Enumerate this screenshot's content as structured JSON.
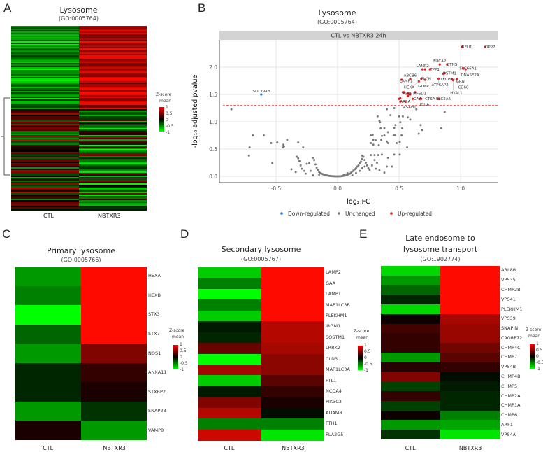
{
  "colors": {
    "up": "#e31a1c",
    "down": "#1f78d4",
    "unchanged": "#7a7a7a",
    "threshold": "#ff4d4d",
    "strip": "#d3d3d3"
  },
  "panelA": {
    "letter": "A",
    "title": "Lysosome",
    "go": "(GO:0005764)",
    "columns": [
      "CTL",
      "NBTXR3"
    ],
    "legend_title": "Z-score\nmean",
    "legend_ticks": [
      "1",
      "0.5",
      "0",
      "-0.5",
      "-1"
    ],
    "n_rows": 130
  },
  "panelB": {
    "letter": "B",
    "title": "Lysosome",
    "go": "(GO:0005764)",
    "strip": "CTL vs NBTXR3 24h"
  },
  "chart_data": [
    {
      "type": "scatter",
      "panel": "B",
      "title": "Lysosome",
      "subtitle": "(GO:0005764)",
      "facet": "CTL vs NBTXR3 24h",
      "xlabel": "log₂ FC",
      "ylabel": "-log₁₀ adjusted pvalue",
      "xlim": [
        -0.96,
        1.3
      ],
      "ylim": [
        -0.115,
        2.5
      ],
      "xticks": [
        -0.5,
        0.0,
        0.5,
        1.0
      ],
      "xtick_labels": [
        "-0.5",
        "0.0",
        "0.5",
        "1.0"
      ],
      "yticks": [
        0,
        0.5,
        1,
        1.5,
        2
      ],
      "ytick_labels": [
        "0.0",
        "0.5",
        "1.0",
        "1.5",
        "2.0"
      ],
      "grid": true,
      "threshold": 1.3,
      "legend_position": "bottom",
      "legend": [
        "Down-regulated",
        "Unchanged",
        "Up-regulated"
      ],
      "down": [
        {
          "x": -0.62,
          "y": 1.5,
          "label": "SLC39A8"
        }
      ],
      "up": [
        {
          "x": 1.01,
          "y": 2.37,
          "label": "NEU1"
        },
        {
          "x": 1.2,
          "y": 2.37,
          "label": "DPP7"
        },
        {
          "x": 0.83,
          "y": 2.05,
          "label": "FUCA2"
        },
        {
          "x": 0.89,
          "y": 2.05,
          "label": "CTNS"
        },
        {
          "x": 0.69,
          "y": 1.96,
          "label": "LAMP2"
        },
        {
          "x": 0.71,
          "y": 1.96,
          "label": ""
        },
        {
          "x": 0.75,
          "y": 1.96,
          "label": "TPP1"
        },
        {
          "x": 1.02,
          "y": 1.98,
          "label": "SLC66A1"
        },
        {
          "x": 1.04,
          "y": 1.96,
          "label": "DNASE2A"
        },
        {
          "x": 0.86,
          "y": 1.88,
          "label": "TECPR1"
        },
        {
          "x": 0.87,
          "y": 1.89,
          "label": "OSTM1"
        },
        {
          "x": 0.93,
          "y": 1.78,
          "label": "GRN"
        },
        {
          "x": 0.97,
          "y": 1.78,
          "label": "CD68"
        },
        {
          "x": 0.82,
          "y": 1.79,
          "label": "ATP6AP2"
        },
        {
          "x": 0.94,
          "y": 1.76,
          "label": "HYAL1"
        },
        {
          "x": 0.52,
          "y": 1.77,
          "label": "LAMP1"
        },
        {
          "x": 0.59,
          "y": 1.79,
          "label": "ABCB6"
        },
        {
          "x": 0.66,
          "y": 1.74,
          "label": "HEXA"
        },
        {
          "x": 0.71,
          "y": 1.77,
          "label": "GLMP"
        },
        {
          "x": 0.68,
          "y": 1.79,
          "label": "FLCN"
        },
        {
          "x": 0.53,
          "y": 1.54,
          "label": "PSAP"
        },
        {
          "x": 0.54,
          "y": 1.54,
          "label": ""
        },
        {
          "x": 0.63,
          "y": 1.54,
          "label": "MFSD1"
        },
        {
          "x": 0.57,
          "y": 1.52,
          "label": ""
        },
        {
          "x": 0.58,
          "y": 1.5,
          "label": ""
        },
        {
          "x": 0.59,
          "y": 1.5,
          "label": ""
        },
        {
          "x": 0.57,
          "y": 1.47,
          "label": ""
        },
        {
          "x": 0.61,
          "y": 1.42,
          "label": "GAA"
        },
        {
          "x": 0.68,
          "y": 1.42,
          "label": "CTSA"
        },
        {
          "x": 0.67,
          "y": 1.42,
          "label": "IDUA"
        },
        {
          "x": 0.82,
          "y": 1.42,
          "label": "SLC2A6"
        },
        {
          "x": 0.51,
          "y": 1.37,
          "label": "ARSA"
        },
        {
          "x": 0.5,
          "y": 1.42,
          "label": ""
        },
        {
          "x": 0.51,
          "y": 1.43,
          "label": ""
        },
        {
          "x": 0.55,
          "y": 1.37,
          "label": "ASAH1"
        }
      ],
      "unchanged": [
        [
          -0.863,
          1.23
        ],
        [
          -0.688,
          0.75
        ],
        [
          -0.715,
          0.53
        ],
        [
          -0.72,
          0.38
        ],
        [
          -0.6,
          0.75
        ],
        [
          -0.54,
          0.61
        ],
        [
          -0.49,
          0.62
        ],
        [
          -0.53,
          0.24
        ],
        [
          -0.41,
          0.67
        ],
        [
          -0.44,
          0.58
        ],
        [
          -0.435,
          0.55
        ],
        [
          -0.445,
          0.53
        ],
        [
          -0.32,
          0.62
        ],
        [
          -0.28,
          0.53
        ],
        [
          -0.375,
          0.13
        ],
        [
          -0.34,
          0.08
        ],
        [
          -0.33,
          0.36
        ],
        [
          -0.32,
          0.33
        ],
        [
          -0.31,
          0.28
        ],
        [
          -0.3,
          0.2
        ],
        [
          -0.29,
          0.14
        ],
        [
          -0.27,
          0.1
        ],
        [
          -0.26,
          0.05
        ],
        [
          -0.25,
          0.23
        ],
        [
          -0.23,
          0.24
        ],
        [
          -0.2,
          0.34
        ],
        [
          -0.19,
          0.3
        ],
        [
          -0.18,
          0.22
        ],
        [
          -0.17,
          0.16
        ],
        [
          -0.16,
          0.12
        ],
        [
          -0.15,
          0.08
        ],
        [
          -0.14,
          0.06
        ],
        [
          -0.13,
          0.05
        ],
        [
          -0.12,
          0.04
        ],
        [
          -0.11,
          0.03
        ],
        [
          -0.1,
          0.025
        ],
        [
          -0.09,
          0.02
        ],
        [
          -0.08,
          0.015
        ],
        [
          -0.07,
          0.01
        ],
        [
          -0.06,
          0.008
        ],
        [
          -0.05,
          0.005
        ],
        [
          -0.04,
          0.003
        ],
        [
          -0.03,
          0.002
        ],
        [
          -0.02,
          0.001
        ],
        [
          -0.01,
          0.0
        ],
        [
          0.0,
          0.0
        ],
        [
          0.01,
          0.0
        ],
        [
          0.02,
          0.002
        ],
        [
          0.03,
          0.004
        ],
        [
          0.04,
          0.006
        ],
        [
          0.05,
          0.01
        ],
        [
          0.06,
          0.015
        ],
        [
          0.07,
          0.02
        ],
        [
          0.08,
          0.03
        ],
        [
          0.09,
          0.04
        ],
        [
          0.1,
          0.05
        ],
        [
          0.11,
          0.07
        ],
        [
          0.12,
          0.09
        ],
        [
          0.13,
          0.11
        ],
        [
          0.14,
          0.13
        ],
        [
          0.15,
          0.15
        ],
        [
          0.16,
          0.18
        ],
        [
          0.17,
          0.2
        ],
        [
          0.18,
          0.24
        ],
        [
          0.19,
          0.27
        ],
        [
          0.2,
          0.32
        ],
        [
          0.2,
          0.38
        ],
        [
          0.21,
          0.36
        ],
        [
          0.22,
          0.3
        ],
        [
          0.23,
          0.25
        ],
        [
          0.24,
          0.2
        ],
        [
          0.25,
          0.15
        ],
        [
          0.26,
          0.12
        ],
        [
          0.12,
          0.02
        ],
        [
          0.15,
          0.06
        ],
        [
          0.18,
          0.1
        ],
        [
          0.2,
          0.15
        ],
        [
          0.22,
          0.18
        ],
        [
          -0.2,
          0.02
        ],
        [
          -0.15,
          0.03
        ],
        [
          -0.22,
          0.1
        ],
        [
          0.05,
          0.03
        ],
        [
          0.08,
          0.06
        ],
        [
          0.27,
          0.39
        ],
        [
          0.3,
          0.39
        ],
        [
          0.33,
          0.39
        ],
        [
          0.36,
          0.4
        ],
        [
          0.4,
          1.23
        ],
        [
          0.46,
          1.25
        ],
        [
          0.325,
          1.1
        ],
        [
          0.34,
          1.02
        ],
        [
          0.345,
          0.99
        ],
        [
          0.43,
          1.12
        ],
        [
          0.5,
          1.1
        ],
        [
          0.53,
          1.1
        ],
        [
          0.51,
          0.99
        ],
        [
          0.57,
          1.08
        ],
        [
          0.59,
          1.04
        ],
        [
          0.64,
          1.23
        ],
        [
          0.87,
          1.18
        ],
        [
          0.47,
          0.94
        ],
        [
          0.46,
          0.89
        ],
        [
          0.35,
          0.88
        ],
        [
          0.38,
          0.88
        ],
        [
          0.41,
          0.81
        ],
        [
          0.675,
          0.94
        ],
        [
          0.685,
          0.85
        ],
        [
          0.66,
          0.78
        ],
        [
          0.84,
          0.88
        ],
        [
          0.525,
          0.88
        ],
        [
          0.52,
          0.75
        ],
        [
          0.27,
          0.75
        ],
        [
          0.285,
          0.76
        ],
        [
          0.36,
          0.74
        ],
        [
          0.38,
          0.75
        ],
        [
          0.455,
          0.75
        ],
        [
          0.465,
          0.75
        ],
        [
          0.29,
          0.67
        ],
        [
          0.31,
          0.66
        ],
        [
          0.355,
          0.67
        ],
        [
          0.4,
          0.64
        ],
        [
          0.505,
          0.63
        ],
        [
          0.48,
          0.61
        ],
        [
          0.41,
          0.61
        ],
        [
          0.27,
          0.61
        ],
        [
          0.29,
          0.58
        ],
        [
          0.335,
          0.57
        ],
        [
          0.565,
          0.53
        ],
        [
          0.46,
          0.4
        ],
        [
          0.505,
          0.4
        ],
        [
          0.4,
          0.18
        ],
        [
          0.44,
          0.18
        ],
        [
          0.34,
          0.11
        ],
        [
          0.38,
          0.07
        ],
        [
          0.41,
          0.34
        ],
        [
          0.3,
          0.3
        ],
        [
          0.32,
          0.25
        ],
        [
          0.28,
          0.2
        ],
        [
          0.31,
          0.14
        ]
      ]
    },
    {
      "type": "heatmap",
      "panel": "C",
      "title": "Primary lysosome",
      "go": "(GO:0005766)",
      "columns": [
        "CTL",
        "NBTXR3"
      ],
      "rows": [
        "HEXA",
        "HEXB",
        "STX3",
        "STX7",
        "NOS1",
        "ANXA11",
        "STXBP2",
        "SNAP23",
        "VAMP8"
      ],
      "values": [
        [
          -0.6,
          1
        ],
        [
          -0.5,
          1
        ],
        [
          -1,
          1
        ],
        [
          -0.4,
          1
        ],
        [
          -0.6,
          0.5
        ],
        [
          -0.15,
          0.2
        ],
        [
          -0.15,
          0.1
        ],
        [
          -0.6,
          -0.2
        ],
        [
          0.1,
          -0.6
        ]
      ]
    },
    {
      "type": "heatmap",
      "panel": "D",
      "title": "Secondary lysosome",
      "go": "(GO:0005767)",
      "columns": [
        "CTL",
        "NBTXR3"
      ],
      "rows": [
        "LAMP2",
        "GAA",
        "LAMP1",
        "MAP1LC3B",
        "PLEKHM1",
        "IRGM1",
        "SQSTM1",
        "LRRK2",
        "CLN3",
        "MAP1LC3A",
        "FTL1",
        "NCOA4",
        "PIK3C3",
        "ADAM8",
        "FTH1",
        "PLA2G5"
      ],
      "values": [
        [
          -0.8,
          1
        ],
        [
          -0.5,
          1
        ],
        [
          -1,
          1
        ],
        [
          -0.5,
          1
        ],
        [
          -0.8,
          1
        ],
        [
          -0.1,
          0.7
        ],
        [
          -0.15,
          0.7
        ],
        [
          0.4,
          0.65
        ],
        [
          -1,
          0.55
        ],
        [
          0.65,
          0.55
        ],
        [
          -0.8,
          0.35
        ],
        [
          -0.1,
          0.2
        ],
        [
          0.5,
          0.1
        ],
        [
          0.7,
          -0.05
        ],
        [
          -0.5,
          -0.5
        ],
        [
          0.8,
          -0.9
        ]
      ]
    },
    {
      "type": "heatmap",
      "panel": "E",
      "title": "Late endosome to lysosome transport",
      "go": "(GO:1902774)",
      "columns": [
        "CTL",
        "NBTXR3"
      ],
      "rows": [
        "ARL8B",
        "VPS35",
        "CHMP2B",
        "VPS41",
        "PLEKHM1",
        "VPS39",
        "SNAPIN",
        "C9ORF72",
        "CHMP4C",
        "CHMP7",
        "VPS4B",
        "CHMP4B",
        "CHMP5",
        "CHMP2A",
        "CHMP1A",
        "CHMP6",
        "ARF1",
        "VPS4A"
      ],
      "values": [
        [
          -0.85,
          1
        ],
        [
          -0.6,
          1
        ],
        [
          -0.4,
          1
        ],
        [
          -0.15,
          1
        ],
        [
          -0.85,
          1
        ],
        [
          0.05,
          0.65
        ],
        [
          0.25,
          0.6
        ],
        [
          0.2,
          0.6
        ],
        [
          0.2,
          0.45
        ],
        [
          -0.6,
          0.35
        ],
        [
          0.15,
          0.2
        ],
        [
          0.5,
          -0.05
        ],
        [
          -0.25,
          -0.1
        ],
        [
          0.2,
          -0.15
        ],
        [
          -0.25,
          -0.15
        ],
        [
          0.05,
          -0.5
        ],
        [
          -0.6,
          -0.65
        ],
        [
          -0.2,
          -0.9
        ]
      ]
    }
  ],
  "panelC": {
    "letter": "C",
    "title": "Primary lysosome",
    "go": "(GO:0005766)"
  },
  "panelD": {
    "letter": "D",
    "title": "Secondary lysosome",
    "go": "(GO:0005767)"
  },
  "panelE": {
    "letter": "E",
    "title_line1": "Late endosome to",
    "title_line2": "lysosome transport",
    "go": "(GO:1902774)"
  },
  "legend": {
    "title_line1": "Z-score",
    "title_line2": "mean",
    "ticks": [
      "1",
      "0.5",
      "0",
      "-0.5",
      "-1"
    ]
  }
}
